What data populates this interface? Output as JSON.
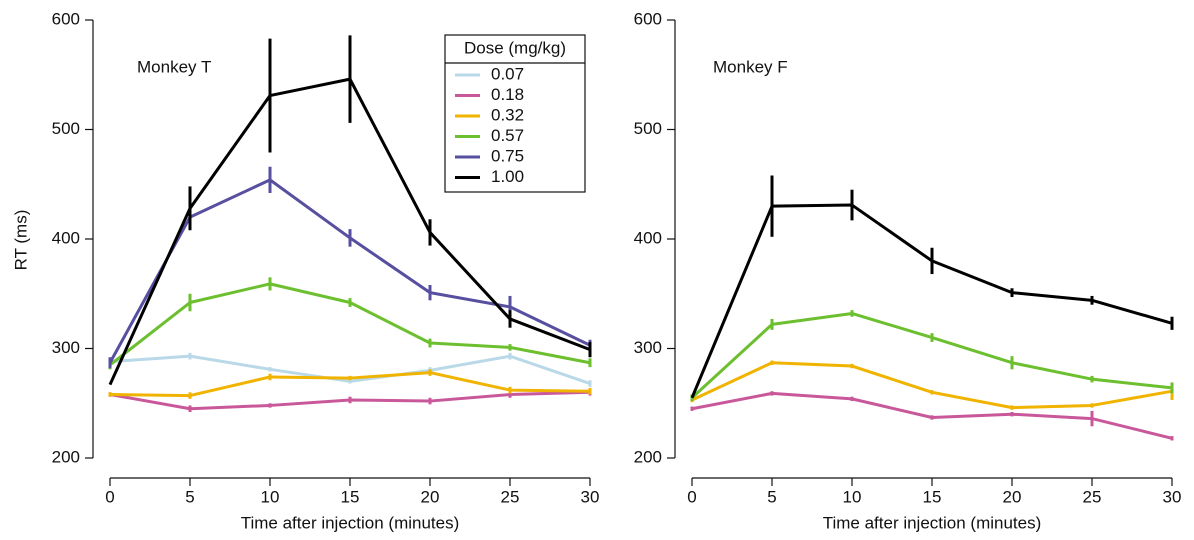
{
  "chart_data": [
    {
      "type": "line",
      "annotation": "Monkey T",
      "x_label": "Time after injection (minutes)",
      "y_label": "RT (ms)",
      "legend_title": "Dose (mg/kg)",
      "legend": "upper right",
      "x": [
        0,
        5,
        10,
        15,
        20,
        25,
        30
      ],
      "xlim": [
        0,
        30
      ],
      "xticks": [
        0,
        5,
        10,
        15,
        20,
        25,
        30
      ],
      "ylim": [
        200,
        600
      ],
      "yticks": [
        200,
        300,
        400,
        500,
        600
      ],
      "series": [
        {
          "name": "0.07",
          "color": "#b9d9e8",
          "values": [
            288,
            293,
            281,
            270,
            280,
            293,
            268
          ],
          "errors": [
            3,
            3,
            2,
            2,
            3,
            3,
            3
          ]
        },
        {
          "name": "0.18",
          "color": "#c9589a",
          "values": [
            258,
            245,
            248,
            253,
            252,
            258,
            260
          ],
          "errors": [
            2,
            3,
            2,
            3,
            3,
            3,
            3
          ]
        },
        {
          "name": "0.32",
          "color": "#f0b400",
          "values": [
            258,
            257,
            274,
            273,
            278,
            262,
            261
          ],
          "errors": [
            2,
            3,
            3,
            2,
            3,
            3,
            3
          ]
        },
        {
          "name": "0.57",
          "color": "#6cbf2e",
          "values": [
            285,
            342,
            359,
            342,
            305,
            301,
            287
          ],
          "errors": [
            4,
            8,
            6,
            4,
            4,
            3,
            4
          ]
        },
        {
          "name": "0.75",
          "color": "#574f9f",
          "values": [
            287,
            420,
            454,
            401,
            351,
            338,
            303
          ],
          "errors": [
            5,
            8,
            12,
            8,
            7,
            10,
            5
          ]
        },
        {
          "name": "1.00",
          "color": "#000000",
          "values": [
            267,
            428,
            531,
            546,
            406,
            327,
            299
          ],
          "errors": [
            0,
            20,
            52,
            40,
            12,
            8,
            7
          ]
        }
      ]
    },
    {
      "type": "line",
      "annotation": "Monkey F",
      "x_label": "Time after injection (minutes)",
      "x": [
        0,
        5,
        10,
        15,
        20,
        25,
        30
      ],
      "xlim": [
        0,
        30
      ],
      "xticks": [
        0,
        5,
        10,
        15,
        20,
        25,
        30
      ],
      "ylim": [
        200,
        600
      ],
      "yticks": [
        200,
        300,
        400,
        500,
        600
      ],
      "series": [
        {
          "color": "#c9589a",
          "values": [
            245,
            259,
            254,
            237,
            240,
            236,
            218
          ],
          "errors": [
            2,
            2,
            2,
            2,
            2,
            7,
            2
          ]
        },
        {
          "color": "#f0b400",
          "values": [
            253,
            287,
            284,
            260,
            246,
            248,
            261
          ],
          "errors": [
            2,
            2,
            2,
            2,
            2,
            2,
            8
          ]
        },
        {
          "color": "#6cbf2e",
          "values": [
            255,
            322,
            332,
            310,
            287,
            272,
            264
          ],
          "errors": [
            3,
            5,
            3,
            4,
            6,
            3,
            5
          ]
        },
        {
          "color": "#000000",
          "values": [
            255,
            430,
            431,
            380,
            351,
            344,
            323
          ],
          "errors": [
            0,
            28,
            14,
            12,
            4,
            4,
            6
          ]
        }
      ]
    }
  ]
}
